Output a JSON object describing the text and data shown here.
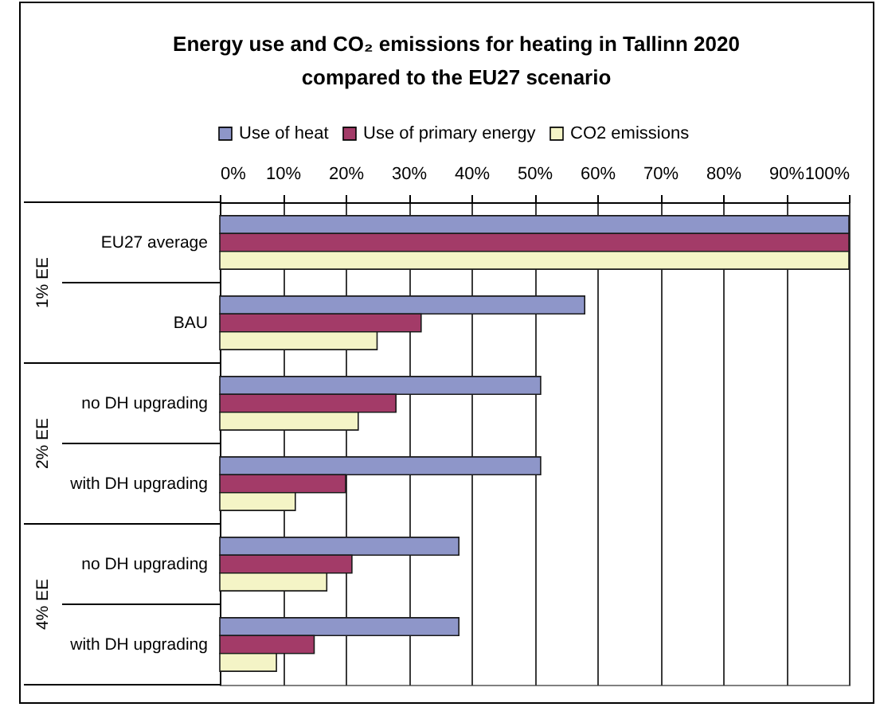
{
  "chart_data": {
    "type": "bar",
    "orientation": "horizontal",
    "title": "Energy use and CO₂ emissions for heating in Tallinn 2020\ncompared to the EU27 scenario",
    "categories": [
      "EU27 average",
      "BAU",
      "no DH upgrading",
      "with DH upgrading",
      "no DH upgrading",
      "with DH upgrading"
    ],
    "series": [
      {
        "name": "Use of heat",
        "color": "#8e96c9",
        "values": [
          100,
          58,
          51,
          51,
          38,
          38
        ]
      },
      {
        "name": "Use of primary energy",
        "color": "#a33b68",
        "values": [
          100,
          32,
          28,
          20,
          21,
          15
        ]
      },
      {
        "name": "CO2 emissions",
        "color": "#f4f4c6",
        "values": [
          100,
          25,
          22,
          12,
          17,
          9
        ]
      }
    ],
    "xlim": [
      0,
      100
    ],
    "xticks": [
      {
        "value": 0,
        "label": "0%"
      },
      {
        "value": 10,
        "label": "10%"
      },
      {
        "value": 20,
        "label": "20%"
      },
      {
        "value": 30,
        "label": "30%"
      },
      {
        "value": 40,
        "label": "40%"
      },
      {
        "value": 50,
        "label": "50%"
      },
      {
        "value": 60,
        "label": "60%"
      },
      {
        "value": 70,
        "label": "70%"
      },
      {
        "value": 80,
        "label": "80%"
      },
      {
        "value": 90,
        "label": "90%"
      },
      {
        "value": 100,
        "label": "100%"
      }
    ],
    "grid": "x",
    "legend": "top",
    "annotations": [
      "1% EE",
      "2% EE",
      "4% EE"
    ]
  }
}
